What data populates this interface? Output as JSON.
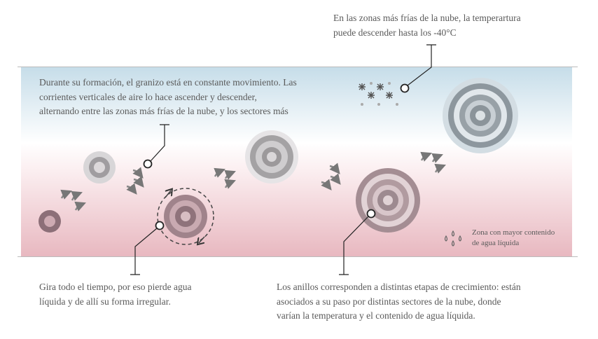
{
  "texts": {
    "cold_zone": [
      "En las zonas más frías de la nube, la temperartura",
      "puede descender hasta los -40°C"
    ],
    "movement": [
      "Durante su formación, el granizo está en constante movimiento. Las",
      "corrientes verticales de aire lo hace ascender y descender,",
      "alternando entre las zonas más frías de la nube, y los sectores más"
    ],
    "rotation": [
      "Gira todo el tiempo, por eso pierde agua",
      "líquida y de allí su forma irregular."
    ],
    "rings": [
      "Los anillos corresponden a distintas etapas de crecimiento: están",
      "asociados a su paso por distintas sectores de la nube, donde",
      "varían la temperatura y el contenido de agua líquida."
    ],
    "legend": [
      "Zona con mayor contenido",
      "de agua líquida"
    ]
  },
  "colors": {
    "cold": "#c6dde9",
    "warm": "#e8b8c0",
    "hail_warm": "#8c6f78",
    "hail_cold": "#8e9aa3"
  },
  "icons": [
    "snowflake-icon",
    "water-drops-icon",
    "rotation-arrow-icon",
    "airflow-arrow-icon"
  ]
}
